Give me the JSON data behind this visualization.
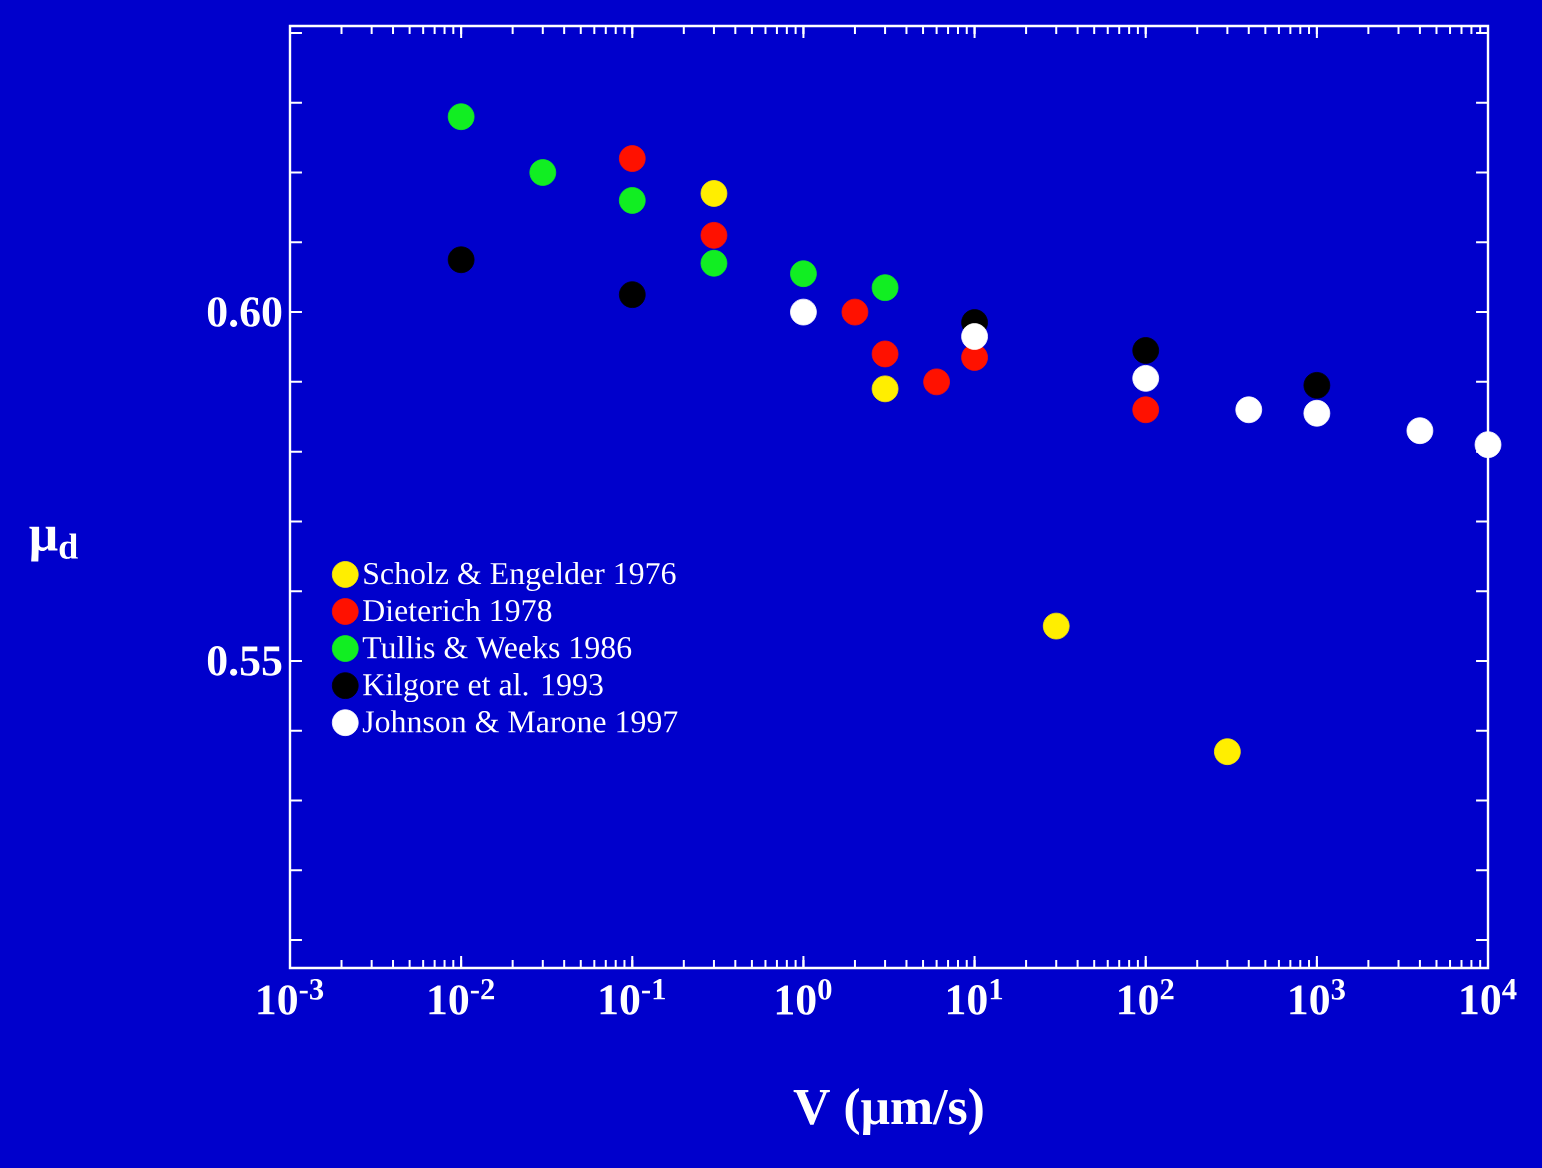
{
  "chart_data": {
    "type": "scatter",
    "xlabel": "V (μm/s)",
    "ylabel": "μ$_{d}$",
    "log": "x",
    "legend": "bottom left",
    "grid": false,
    "xlim": [
      0.001,
      10000
    ],
    "ylim": [
      0.506,
      0.641
    ],
    "xticks": [
      {
        "value": 0.001,
        "label": "10$^{-3}$"
      },
      {
        "value": 0.01,
        "label": "10$^{-2}$"
      },
      {
        "value": 0.1,
        "label": "10$^{-1}$"
      },
      {
        "value": 1,
        "label": "10$^{0}$"
      },
      {
        "value": 10,
        "label": "10$^{1}$"
      },
      {
        "value": 100,
        "label": "10$^{2}$"
      },
      {
        "value": 1000,
        "label": "10$^{3}$"
      },
      {
        "value": 10000,
        "label": "10$^{4}$"
      }
    ],
    "yticks": [
      {
        "value": 0.51,
        "label": null
      },
      {
        "value": 0.52,
        "label": null
      },
      {
        "value": 0.53,
        "label": null
      },
      {
        "value": 0.54,
        "label": null
      },
      {
        "value": 0.55,
        "label": "0.55"
      },
      {
        "value": 0.56,
        "label": null
      },
      {
        "value": 0.57,
        "label": null
      },
      {
        "value": 0.58,
        "label": null
      },
      {
        "value": 0.59,
        "label": null
      },
      {
        "value": 0.6,
        "label": "0.60"
      },
      {
        "value": 0.61,
        "label": null
      },
      {
        "value": 0.62,
        "label": null
      },
      {
        "value": 0.63,
        "label": null
      },
      {
        "value": 0.64,
        "label": null
      }
    ],
    "series": [
      {
        "name": "Scholz & Engelder 1976",
        "color": "#ffee00",
        "x": [
          0.3,
          3,
          30,
          300
        ],
        "values": [
          0.617,
          0.589,
          0.555,
          0.537
        ]
      },
      {
        "name": "Dieterich 1978",
        "color": "#ff1100",
        "x": [
          0.1,
          0.3,
          2,
          3,
          6,
          10,
          100
        ],
        "values": [
          0.622,
          0.611,
          0.6,
          0.594,
          0.59,
          0.5935,
          0.586
        ]
      },
      {
        "name": "Tullis & Weeks 1986",
        "color": "#11ee22",
        "x": [
          0.01,
          0.03,
          0.1,
          0.3,
          1,
          3
        ],
        "values": [
          0.628,
          0.62,
          0.616,
          0.607,
          0.6055,
          0.6035
        ]
      },
      {
        "name": "Kilgore et al. 1993",
        "color": "#000000",
        "x": [
          0.01,
          0.1,
          10,
          100,
          1000
        ],
        "values": [
          0.6075,
          0.6025,
          0.5985,
          0.5945,
          0.5895
        ]
      },
      {
        "name": "Johnson & Marone 1997",
        "color": "#ffffff",
        "x": [
          1,
          10,
          100,
          400,
          1000,
          4000,
          10000
        ],
        "values": [
          0.6,
          0.5965,
          0.5905,
          0.586,
          0.5855,
          0.583,
          0.581
        ]
      }
    ]
  }
}
